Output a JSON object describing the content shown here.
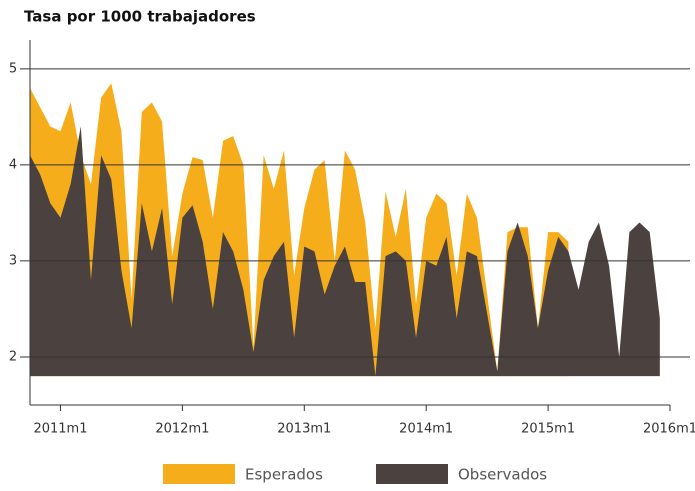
{
  "chart_data": {
    "type": "area",
    "title": "Tasa por 1000 trabajadores",
    "categories": [
      null,
      null,
      null,
      "2011m1",
      null,
      null,
      null,
      null,
      null,
      null,
      null,
      null,
      null,
      null,
      null,
      "2012m1",
      null,
      null,
      null,
      null,
      null,
      null,
      null,
      null,
      null,
      null,
      null,
      "2013m1",
      null,
      null,
      null,
      null,
      null,
      null,
      null,
      null,
      null,
      null,
      null,
      "2014m1",
      null,
      null,
      null,
      null,
      null,
      null,
      null,
      null,
      null,
      null,
      null,
      "2015m1",
      null,
      null,
      null,
      null,
      null,
      null,
      null,
      null,
      null,
      null,
      null,
      "2016m1"
    ],
    "series": [
      {
        "name": "Esperados",
        "color": "#f5ad1b",
        "values": [
          4.8,
          4.6,
          4.4,
          4.35,
          4.65,
          4.1,
          3.8,
          4.7,
          4.85,
          4.35,
          2.6,
          4.55,
          4.65,
          4.45,
          3.05,
          3.7,
          4.08,
          4.05,
          3.45,
          4.25,
          4.3,
          4.0,
          2.1,
          4.1,
          3.75,
          4.15,
          2.85,
          3.55,
          3.95,
          4.05,
          3.0,
          4.15,
          3.95,
          3.4,
          2.3,
          3.72,
          3.25,
          3.75,
          2.55,
          3.45,
          3.7,
          3.6,
          2.85,
          3.7,
          3.45,
          2.65,
          1.85,
          3.3,
          3.35,
          3.35,
          2.3,
          3.3,
          3.3,
          3.2,
          null,
          null,
          null,
          null,
          null,
          null,
          null,
          null,
          null,
          null
        ]
      },
      {
        "name": "Observados",
        "color": "#4b413e",
        "values": [
          4.1,
          3.9,
          3.6,
          3.45,
          3.8,
          4.4,
          2.8,
          4.1,
          3.85,
          2.9,
          2.3,
          3.6,
          3.1,
          3.55,
          2.55,
          3.45,
          3.58,
          3.2,
          2.5,
          3.3,
          3.1,
          2.7,
          2.05,
          2.8,
          3.05,
          3.2,
          2.2,
          3.15,
          3.1,
          2.65,
          2.95,
          3.15,
          2.78,
          2.78,
          1.8,
          3.05,
          3.1,
          3.0,
          2.2,
          3.0,
          2.95,
          3.25,
          2.4,
          3.1,
          3.05,
          2.45,
          1.85,
          3.1,
          3.4,
          3.05,
          2.3,
          2.9,
          3.25,
          3.1,
          2.7,
          3.2,
          3.4,
          2.95,
          2.0,
          3.3,
          3.4,
          3.3,
          2.4,
          null
        ]
      }
    ],
    "ylim": [
      1.5,
      5.3
    ],
    "yticks": [
      2,
      3,
      4,
      5
    ],
    "grid": true,
    "legend": "bottom"
  }
}
